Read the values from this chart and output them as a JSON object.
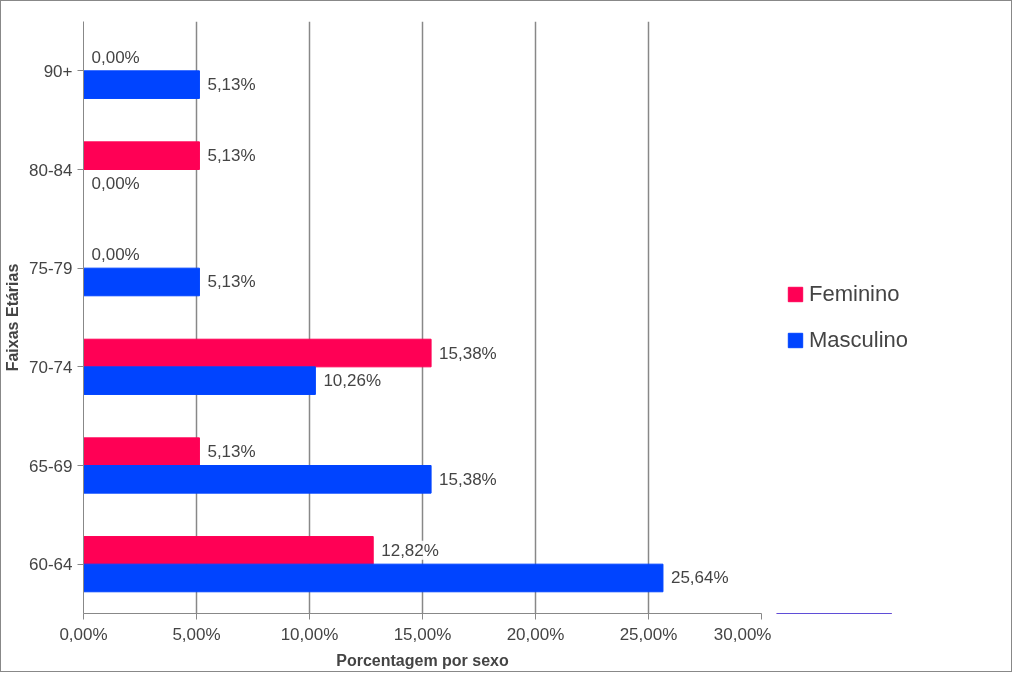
{
  "chart_data": {
    "type": "bar",
    "orientation": "horizontal",
    "xlabel": "Porcentagem por sexo",
    "ylabel": "Faixas Etárias",
    "categories": [
      "90+",
      "80-84",
      "75-79",
      "70-74",
      "65-69",
      "60-64"
    ],
    "series": [
      {
        "name": "Feminino",
        "color": "#ff0055",
        "values": [
          0,
          5.13,
          0,
          15.38,
          5.13,
          12.82
        ],
        "value_labels": [
          "0,00%",
          "5,13%",
          "0,00%",
          "15,38%",
          "5,13%",
          "12,82%"
        ]
      },
      {
        "name": "Masculino",
        "color": "#0044ff",
        "values": [
          5.13,
          0,
          5.13,
          10.26,
          15.38,
          25.64
        ],
        "value_labels": [
          "5,13%",
          "0,00%",
          "5,13%",
          "10,26%",
          "15,38%",
          "25,64%"
        ]
      }
    ],
    "xlim": [
      0,
      30
    ],
    "xticks": [
      {
        "value": 0,
        "label": "0,00%"
      },
      {
        "value": 5,
        "label": "5,00%"
      },
      {
        "value": 10,
        "label": "10,00%"
      },
      {
        "value": 15,
        "label": "15,00%"
      },
      {
        "value": 20,
        "label": "20,00%"
      },
      {
        "value": 25,
        "label": "25,00%"
      },
      {
        "value": 30,
        "label": "30,00%"
      }
    ],
    "grid": "x",
    "legend": "right"
  }
}
